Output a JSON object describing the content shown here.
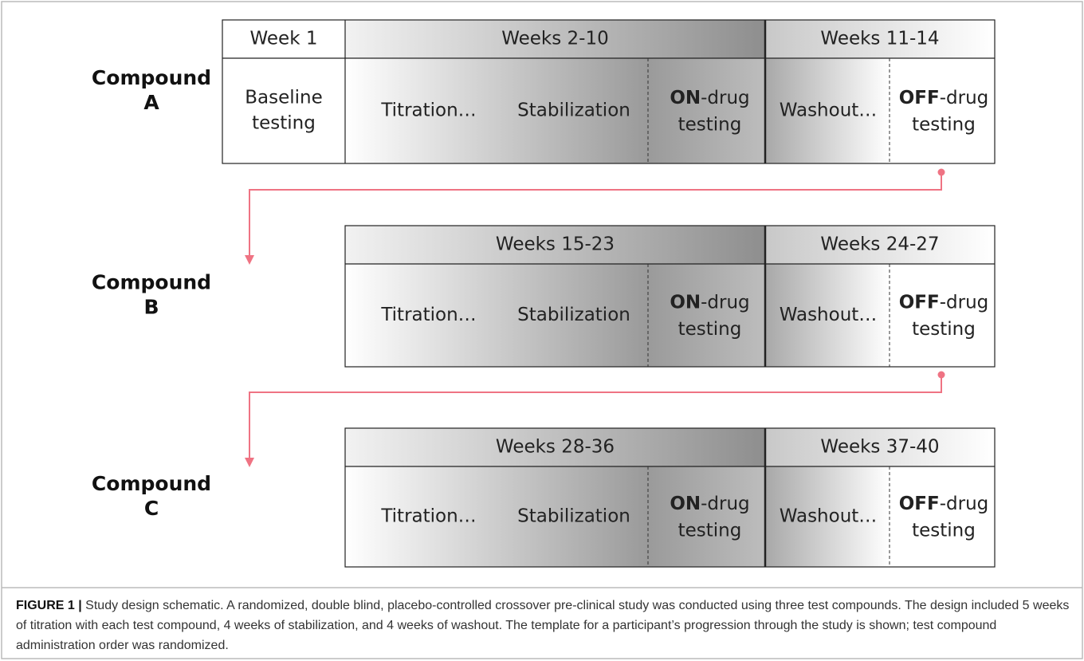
{
  "compounds": [
    {
      "label_lines": [
        "Compound",
        "A"
      ],
      "baseline": {
        "header": "Week 1",
        "body_lines": [
          "Baseline",
          "testing"
        ]
      },
      "treatment_header": "Weeks 2-10",
      "washout_header": "Weeks 11-14",
      "titration": "Titration…",
      "stabilization": "Stabilization",
      "on_drug": {
        "bold": "ON",
        "rest": "-drug",
        "line2": "testing"
      },
      "washout": "Washout…",
      "off_drug": {
        "bold": "OFF",
        "rest": "-drug",
        "line2": "testing"
      }
    },
    {
      "label_lines": [
        "Compound",
        "B"
      ],
      "treatment_header": "Weeks 15-23",
      "washout_header": "Weeks 24-27",
      "titration": "Titration…",
      "stabilization": "Stabilization",
      "on_drug": {
        "bold": "ON",
        "rest": "-drug",
        "line2": "testing"
      },
      "washout": "Washout…",
      "off_drug": {
        "bold": "OFF",
        "rest": "-drug",
        "line2": "testing"
      }
    },
    {
      "label_lines": [
        "Compound",
        "C"
      ],
      "treatment_header": "Weeks 28-36",
      "washout_header": "Weeks 37-40",
      "titration": "Titration…",
      "stabilization": "Stabilization",
      "on_drug": {
        "bold": "ON",
        "rest": "-drug",
        "line2": "testing"
      },
      "washout": "Washout…",
      "off_drug": {
        "bold": "OFF",
        "rest": "-drug",
        "line2": "testing"
      }
    }
  ],
  "caption": {
    "label": "FIGURE 1 |",
    "text": "Study design schematic. A randomized, double blind, placebo-controlled crossover pre-clinical study was conducted using three test compounds. The design included 5 weeks of titration with each test compound, 4 weeks of stabilization, and 4 weeks of washout. The template for a participant’s progression through the study is shown; test compound administration order was randomized."
  }
}
